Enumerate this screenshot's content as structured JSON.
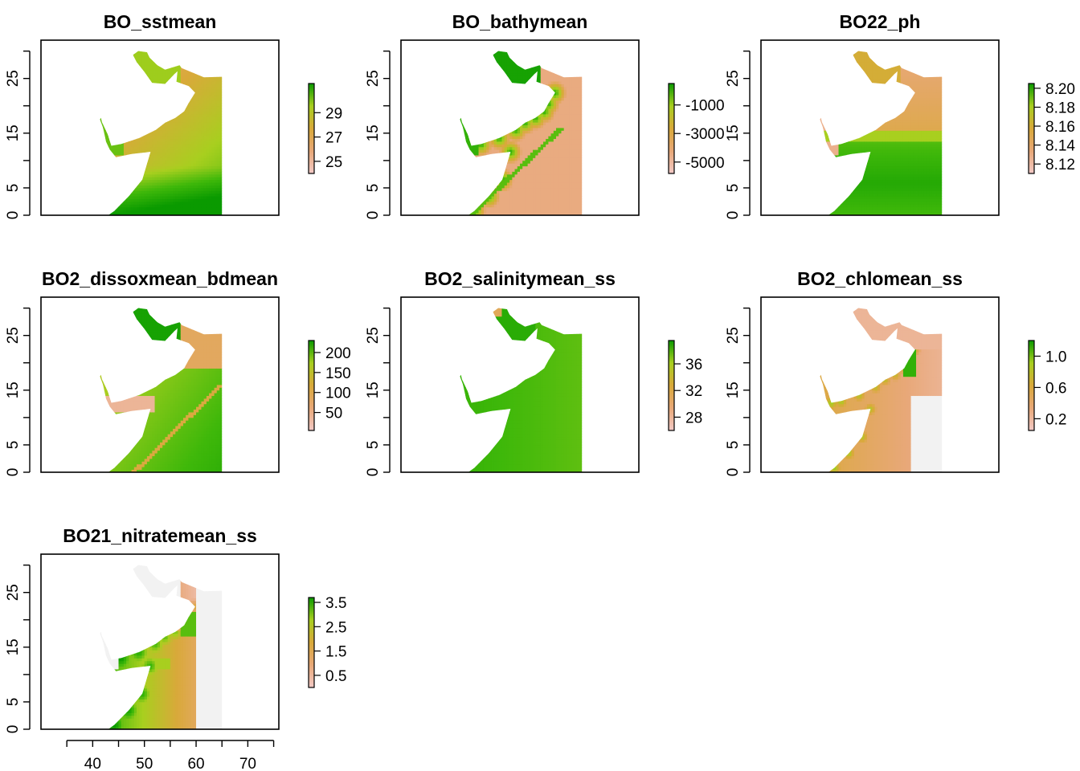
{
  "chart_data": {
    "type": "heatmap",
    "layout": "3x3 grid of raster map panels",
    "x_axis": {
      "range": [
        30,
        76
      ],
      "ticks": [
        40,
        50,
        60,
        70
      ],
      "shown_on": "BO21_nitratemean_ss"
    },
    "y_axis": {
      "range": [
        0,
        32
      ],
      "ticks": [
        0,
        5,
        15,
        25
      ],
      "shown_on": "all panels"
    },
    "colors": {
      "low": "#F2C9C6",
      "mid_low": "#E8A878",
      "mid": "#D9A93A",
      "mid_high": "#A8CF1F",
      "high": "#3FB80A",
      "max": "#0A9A00",
      "na": "#F2F2F2"
    },
    "panels": [
      {
        "title": "BO_sstmean",
        "legend": {
          "range": [
            24,
            31.4
          ],
          "ticks": [
            25,
            27,
            29
          ],
          "labels": [
            "25",
            "27",
            "29"
          ]
        },
        "pattern": "sst"
      },
      {
        "title": "BO_bathymean",
        "legend": {
          "range": [
            -5800,
            500
          ],
          "ticks": [
            -5000,
            -3000,
            -1000
          ],
          "labels": [
            "-5000",
            "-3000",
            "-1000"
          ]
        },
        "pattern": "bathy"
      },
      {
        "title": "BO22_ph",
        "legend": {
          "range": [
            8.11,
            8.205
          ],
          "ticks": [
            8.12,
            8.14,
            8.16,
            8.18,
            8.2
          ],
          "labels": [
            "8.12",
            "8.14",
            "8.16",
            "8.18",
            "8.20"
          ]
        },
        "pattern": "ph"
      },
      {
        "title": "BO2_dissoxmean_bdmean",
        "legend": {
          "range": [
            5,
            230
          ],
          "ticks": [
            50,
            100,
            150,
            200
          ],
          "labels": [
            "50",
            "100",
            "150",
            "200"
          ]
        },
        "pattern": "dissox"
      },
      {
        "title": "BO2_salinitymean_ss",
        "legend": {
          "range": [
            26,
            39.5
          ],
          "ticks": [
            28,
            32,
            36
          ],
          "labels": [
            "28",
            "32",
            "36"
          ]
        },
        "pattern": "salinity"
      },
      {
        "title": "BO2_chlomean_ss",
        "legend": {
          "range": [
            0.05,
            1.2
          ],
          "ticks": [
            0.2,
            0.6,
            1.0
          ],
          "labels": [
            "0.2",
            "0.6",
            "1.0"
          ]
        },
        "pattern": "chlo"
      },
      {
        "title": "BO21_nitratemean_ss",
        "legend": {
          "range": [
            0,
            3.7
          ],
          "ticks": [
            0.5,
            1.5,
            2.5,
            3.5
          ],
          "labels": [
            "0.5",
            "1.5",
            "2.5",
            "3.5"
          ]
        },
        "pattern": "nitrate"
      }
    ]
  }
}
